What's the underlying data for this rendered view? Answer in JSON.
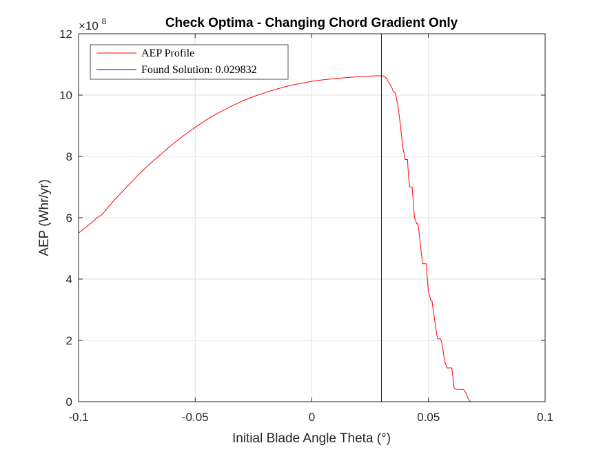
{
  "chart_data": {
    "type": "line",
    "title": "Check Optima - Changing Chord Gradient Only",
    "xlabel": "Initial Blade Angle Theta (°)",
    "ylabel": "AEP (Whr/yr)",
    "y_multiplier_base": "×10",
    "y_multiplier_exponent": "8",
    "xlim": [
      -0.1,
      0.1
    ],
    "ylim": [
      0,
      12
    ],
    "x_ticks": [
      -0.1,
      -0.05,
      0,
      0.05,
      0.1
    ],
    "x_tick_labels": [
      "-0.1",
      "-0.05",
      "0",
      "0.05",
      "0.1"
    ],
    "y_ticks": [
      0,
      2,
      4,
      6,
      8,
      10,
      12
    ],
    "y_tick_labels": [
      "0",
      "2",
      "4",
      "6",
      "8",
      "10",
      "12"
    ],
    "grid": true,
    "legend_position": "top-left",
    "legend": [
      "AEP Profile",
      "Found Solution: 0.029832"
    ],
    "colors": {
      "profile": "#ff0000",
      "solution": "#0000ff"
    },
    "series": [
      {
        "name": "AEP Profile",
        "x": [
          -0.1,
          -0.095,
          -0.092,
          -0.09,
          -0.085,
          -0.08,
          -0.075,
          -0.07,
          -0.065,
          -0.06,
          -0.055,
          -0.05,
          -0.045,
          -0.04,
          -0.035,
          -0.03,
          -0.025,
          -0.02,
          -0.015,
          -0.01,
          -0.005,
          0,
          0.005,
          0.01,
          0.015,
          0.02,
          0.025,
          0.028,
          0.0305,
          0.032,
          0.033,
          0.034,
          0.035,
          0.0355,
          0.036,
          0.037,
          0.038,
          0.039,
          0.04,
          0.041,
          0.0415,
          0.042,
          0.043,
          0.0435,
          0.044,
          0.045,
          0.0455,
          0.046,
          0.047,
          0.0475,
          0.048,
          0.049,
          0.0495,
          0.05,
          0.051,
          0.0515,
          0.052,
          0.053,
          0.0535,
          0.054,
          0.055,
          0.0555,
          0.056,
          0.057,
          0.058,
          0.059,
          0.06,
          0.0605,
          0.061,
          0.062,
          0.063,
          0.064,
          0.065,
          0.066,
          0.067,
          0.0675,
          0.068,
          0.069,
          0.07,
          0.075,
          0.08,
          0.09,
          0.1
        ],
        "y": [
          5.5,
          5.8,
          6.0,
          6.1,
          6.55,
          6.95,
          7.35,
          7.72,
          8.05,
          8.38,
          8.68,
          8.95,
          9.2,
          9.42,
          9.62,
          9.8,
          9.95,
          10.08,
          10.2,
          10.3,
          10.38,
          10.45,
          10.5,
          10.54,
          10.57,
          10.6,
          10.62,
          10.63,
          10.63,
          10.55,
          10.4,
          10.3,
          10.1,
          10.1,
          10.0,
          9.6,
          9.0,
          8.3,
          7.9,
          7.9,
          7.3,
          7.0,
          7.0,
          6.5,
          6.0,
          5.8,
          5.8,
          5.5,
          4.8,
          4.5,
          4.5,
          4.5,
          4.0,
          3.6,
          3.3,
          3.3,
          3.0,
          2.5,
          2.2,
          2.05,
          2.05,
          2.0,
          1.8,
          1.3,
          1.1,
          1.1,
          1.1,
          0.8,
          0.45,
          0.4,
          0.4,
          0.4,
          0.4,
          0.3,
          0.1,
          0.05,
          0.0,
          0.0,
          0.0,
          0.0,
          0.0,
          0.0,
          0.0
        ]
      },
      {
        "name": "Found Solution: 0.029832",
        "x": [
          0.029832,
          0.029832
        ],
        "y": [
          0,
          12
        ]
      }
    ]
  }
}
